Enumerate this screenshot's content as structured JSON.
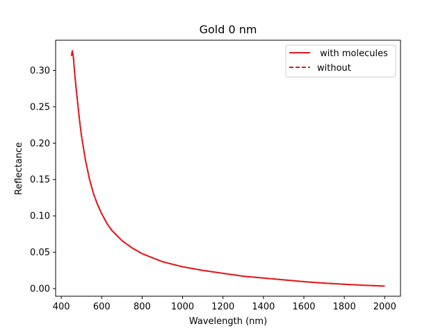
{
  "chart_data": {
    "type": "line",
    "title": "Gold 0 nm",
    "xlabel": "Wavelength (nm)",
    "ylabel": "Reflectance",
    "xlim": [
      372,
      2078
    ],
    "ylim": [
      -0.0105,
      0.3415
    ],
    "xticks": [
      400,
      600,
      800,
      1000,
      1200,
      1400,
      1600,
      1800,
      2000
    ],
    "yticks": [
      0.0,
      0.05,
      0.1,
      0.15,
      0.2,
      0.25,
      0.3
    ],
    "xtick_labels": [
      "400",
      "600",
      "800",
      "1000",
      "1200",
      "1400",
      "1600",
      "1800",
      "2000"
    ],
    "ytick_labels": [
      "0.00",
      "0.05",
      "0.10",
      "0.15",
      "0.20",
      "0.25",
      "0.30"
    ],
    "grid": false,
    "legend_position": "top-right",
    "series": [
      {
        "name": " with molecules",
        "style": "solid",
        "color": "#e31a1c",
        "x": [
          450,
          455,
          460,
          465,
          470,
          480,
          490,
          500,
          520,
          540,
          560,
          580,
          600,
          625,
          650,
          700,
          750,
          800,
          900,
          1000,
          1100,
          1200,
          1300,
          1400,
          1500,
          1600,
          1700,
          1800,
          1900,
          2000
        ],
        "y": [
          0.32,
          0.327,
          0.318,
          0.3,
          0.285,
          0.258,
          0.232,
          0.21,
          0.176,
          0.15,
          0.13,
          0.115,
          0.103,
          0.09,
          0.08,
          0.066,
          0.056,
          0.048,
          0.037,
          0.03,
          0.025,
          0.021,
          0.017,
          0.0145,
          0.012,
          0.0095,
          0.0075,
          0.006,
          0.0045,
          0.0035
        ]
      },
      {
        "name": "without",
        "style": "dashed",
        "color": "#e31a1c",
        "x": [
          450,
          455,
          460,
          465,
          470,
          480,
          490,
          500,
          520,
          540,
          560,
          580,
          600,
          625,
          650,
          700,
          750,
          800,
          900,
          1000,
          1100,
          1200,
          1300,
          1400,
          1500,
          1600,
          1700,
          1800,
          1900,
          2000
        ],
        "y": [
          0.32,
          0.327,
          0.318,
          0.3,
          0.285,
          0.258,
          0.232,
          0.21,
          0.176,
          0.15,
          0.13,
          0.115,
          0.103,
          0.09,
          0.08,
          0.066,
          0.056,
          0.048,
          0.037,
          0.03,
          0.025,
          0.021,
          0.017,
          0.0145,
          0.012,
          0.0095,
          0.0075,
          0.006,
          0.0045,
          0.0035
        ]
      }
    ]
  }
}
